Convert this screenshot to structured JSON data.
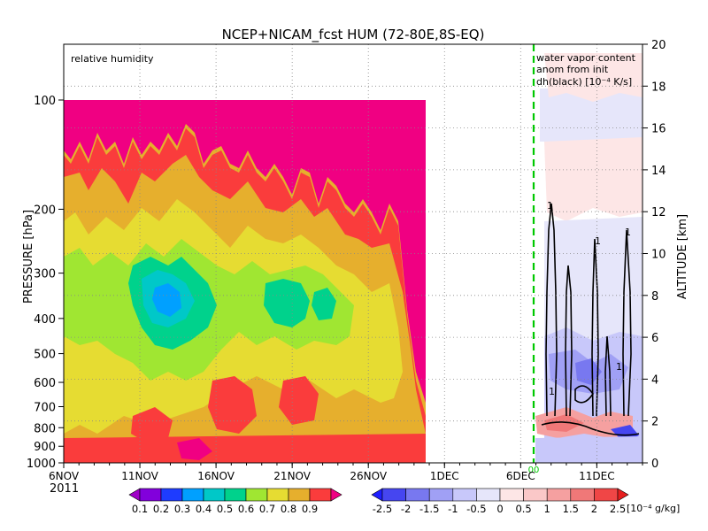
{
  "chart_data": {
    "type": "heatmap",
    "title": "NCEP+NICAM_fcst HUM (72-80E,8S-EQ)",
    "ylabel": "PRESSURE [hPa]",
    "y2label": "ALTITUDE [km]",
    "year_label": "2011",
    "x_axis": {
      "start": "6NOV",
      "end": "14DEC",
      "tick_labels": [
        "6NOV",
        "11NOV",
        "16NOV",
        "21NOV",
        "26NOV",
        "1DEC",
        "6DEC",
        "11DEC"
      ],
      "tick_days": [
        0,
        5,
        10,
        15,
        20,
        25,
        30,
        35
      ],
      "xlim_days": [
        0,
        38
      ]
    },
    "y_axis": {
      "pressure_ticks": [
        100,
        200,
        300,
        400,
        500,
        600,
        700,
        800,
        900,
        1000
      ],
      "pressure_range": [
        1000,
        100
      ],
      "altitude_ticks": [
        0,
        2,
        4,
        6,
        8,
        10,
        12,
        14,
        16,
        18,
        20
      ],
      "altitude_range": [
        0,
        20
      ]
    },
    "grid": true,
    "left_panel": {
      "label": "relative humidity",
      "data_end": "28NOV",
      "colorbar_levels": [
        0.1,
        0.2,
        0.3,
        0.4,
        0.5,
        0.6,
        0.7,
        0.8,
        0.9
      ],
      "colorbar_colors": [
        "#a000c8",
        "#8200dc",
        "#1e3cff",
        "#00a0ff",
        "#00c8c8",
        "#00d28c",
        "#a0e632",
        "#e6dc32",
        "#e6af2d",
        "#fa3c3c",
        "#f00082"
      ]
    },
    "right_panel": {
      "label_lines": [
        "water vapor content",
        "anom from init",
        "dh(black) [10⁻⁴ K/s]"
      ],
      "init_marker": "6DEC",
      "init_label": "00",
      "contour_label": "1",
      "colorbar_levels": [
        "-2.5",
        "-2",
        "-1.5",
        "-1",
        "-0.5",
        "0",
        "0.5",
        "1",
        "1.5",
        "2",
        "2.5"
      ],
      "colorbar_unit": "[10⁻⁴ g/kg]",
      "colorbar_colors": [
        "#1e1eff",
        "#4646f0",
        "#7878f0",
        "#a0a0f5",
        "#c8c8fa",
        "#e6e6fa",
        "#fde6e6",
        "#fac8c8",
        "#f5a0a0",
        "#f07878",
        "#f04646",
        "#e61e1e"
      ]
    }
  }
}
